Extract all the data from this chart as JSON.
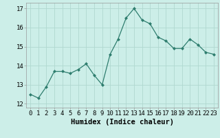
{
  "x": [
    0,
    1,
    2,
    3,
    4,
    5,
    6,
    7,
    8,
    9,
    10,
    11,
    12,
    13,
    14,
    15,
    16,
    17,
    18,
    19,
    20,
    21,
    22,
    23
  ],
  "y": [
    12.5,
    12.3,
    12.9,
    13.7,
    13.7,
    13.6,
    13.8,
    14.1,
    13.5,
    13.0,
    14.6,
    15.4,
    16.5,
    17.0,
    16.4,
    16.2,
    15.5,
    15.3,
    14.9,
    14.9,
    15.4,
    15.1,
    14.7,
    14.6
  ],
  "line_color": "#2e7d6e",
  "marker_color": "#2e7d6e",
  "bg_color": "#cceee8",
  "grid_color": "#b0d8d0",
  "xlabel": "Humidex (Indice chaleur)",
  "ylim": [
    11.8,
    17.3
  ],
  "xlim": [
    -0.5,
    23.5
  ],
  "yticks": [
    12,
    13,
    14,
    15,
    16,
    17
  ],
  "xticks": [
    0,
    1,
    2,
    3,
    4,
    5,
    6,
    7,
    8,
    9,
    10,
    11,
    12,
    13,
    14,
    15,
    16,
    17,
    18,
    19,
    20,
    21,
    22,
    23
  ],
  "tick_fontsize": 6.5,
  "xlabel_fontsize": 7.5
}
